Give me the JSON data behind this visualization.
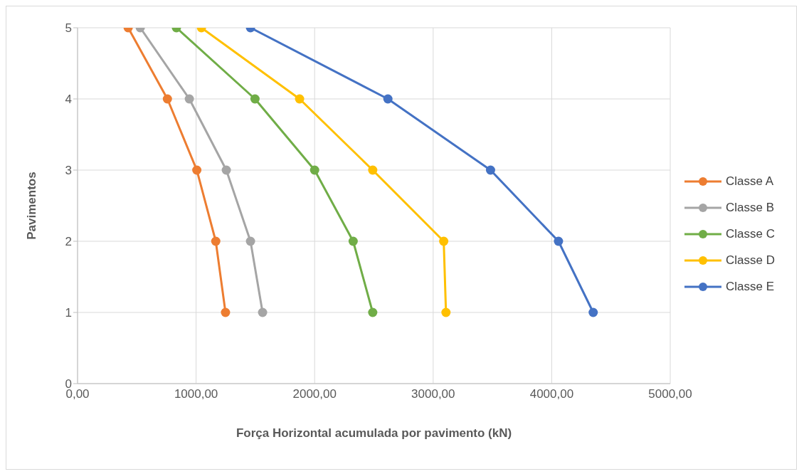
{
  "chart_data": {
    "type": "line",
    "xlabel": "Força Horizontal acumulada por pavimento (kN)",
    "ylabel": "Pavimentos",
    "series": [
      {
        "name": "Classe A",
        "color": "#ed7d31",
        "x": [
          427,
          758,
          1006,
          1166,
          1248
        ],
        "values": [
          5,
          4,
          3,
          2,
          1
        ]
      },
      {
        "name": "Classe B",
        "color": "#a5a5a5",
        "x": [
          529,
          943,
          1255,
          1459,
          1561
        ],
        "values": [
          5,
          4,
          3,
          2,
          1
        ]
      },
      {
        "name": "Classe C",
        "color": "#70ad47",
        "x": [
          834,
          1497,
          2000,
          2325,
          2490
        ],
        "values": [
          5,
          4,
          3,
          2,
          1
        ]
      },
      {
        "name": "Classe D",
        "color": "#ffc000",
        "x": [
          1045,
          1873,
          2490,
          3089,
          3108
        ],
        "values": [
          5,
          4,
          3,
          2,
          1
        ]
      },
      {
        "name": "Classe E",
        "color": "#4472c4",
        "x": [
          1459,
          2618,
          3484,
          4057,
          4350
        ],
        "values": [
          5,
          4,
          3,
          2,
          1
        ]
      }
    ],
    "xlim": [
      0,
      5000
    ],
    "xticks": [
      {
        "value": 0,
        "label": "0,00"
      },
      {
        "value": 1000,
        "label": "1000,00"
      },
      {
        "value": 2000,
        "label": "2000,00"
      },
      {
        "value": 3000,
        "label": "3000,00"
      },
      {
        "value": 4000,
        "label": "4000,00"
      },
      {
        "value": 5000,
        "label": "5000,00"
      }
    ],
    "ylim": [
      0,
      5
    ],
    "yticks": [
      0,
      1,
      2,
      3,
      4,
      5
    ],
    "grid": true,
    "legend": "right",
    "marker": "circle",
    "line_style": "solid"
  }
}
